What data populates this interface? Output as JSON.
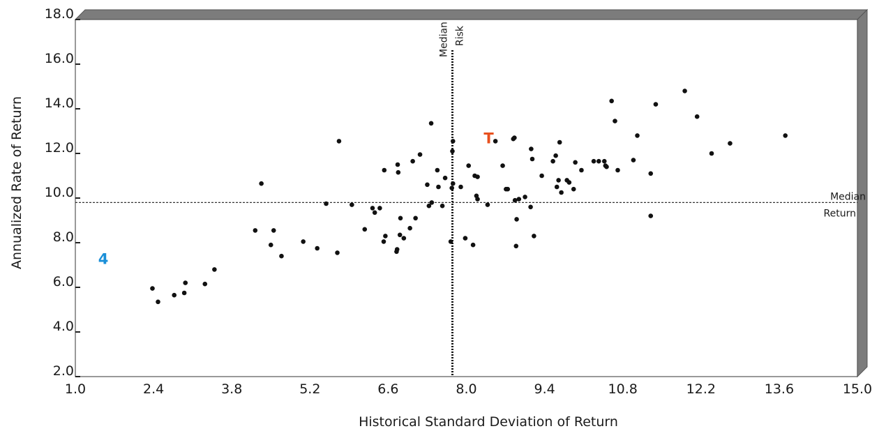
{
  "chart_data": {
    "type": "scatter",
    "title": "",
    "xlabel": "Historical Standard Deviation of Return",
    "ylabel": "Annualized Rate of Return",
    "xlim": [
      1.0,
      15.0
    ],
    "ylim": [
      2.0,
      18.0
    ],
    "x_ticks": [
      "1.0",
      "2.4",
      "3.8",
      "5.2",
      "6.6",
      "8.0",
      "9.4",
      "10.8",
      "12.2",
      "13.6",
      "15.0"
    ],
    "y_ticks": [
      "2.0",
      "4.0",
      "6.0",
      "8.0",
      "10.0",
      "12.0",
      "14.0",
      "16.0",
      "18.0"
    ],
    "grid": false,
    "reference_lines": {
      "median_risk": {
        "value": 7.75,
        "label_line1": "Median",
        "label_line2": "Risk"
      },
      "median_return": {
        "value": 9.8,
        "label_line1": "Median",
        "label_line2": "Return"
      }
    },
    "highlights": [
      {
        "label": "T",
        "x": 8.4,
        "y": 12.7,
        "color": "#e8501e"
      },
      {
        "label": "4",
        "x": 1.5,
        "y": 7.3,
        "color": "#1a8fd8"
      }
    ],
    "points": [
      [
        2.38,
        5.95
      ],
      [
        2.48,
        5.35
      ],
      [
        2.77,
        5.65
      ],
      [
        2.95,
        5.75
      ],
      [
        2.97,
        6.2
      ],
      [
        3.32,
        6.15
      ],
      [
        3.49,
        6.8
      ],
      [
        4.22,
        8.55
      ],
      [
        4.33,
        10.65
      ],
      [
        4.5,
        7.9
      ],
      [
        4.55,
        8.55
      ],
      [
        4.69,
        7.4
      ],
      [
        5.08,
        8.05
      ],
      [
        5.33,
        7.75
      ],
      [
        5.49,
        9.75
      ],
      [
        5.69,
        7.55
      ],
      [
        5.72,
        12.55
      ],
      [
        5.95,
        9.7
      ],
      [
        6.18,
        8.6
      ],
      [
        6.32,
        9.55
      ],
      [
        6.36,
        9.35
      ],
      [
        6.45,
        9.55
      ],
      [
        6.52,
        8.05
      ],
      [
        6.53,
        11.25
      ],
      [
        6.55,
        8.3
      ],
      [
        6.75,
        7.6
      ],
      [
        6.76,
        7.7
      ],
      [
        6.77,
        11.5
      ],
      [
        6.78,
        11.15
      ],
      [
        6.81,
        8.35
      ],
      [
        6.82,
        9.1
      ],
      [
        6.88,
        8.2
      ],
      [
        6.99,
        8.65
      ],
      [
        7.04,
        11.65
      ],
      [
        7.09,
        9.1
      ],
      [
        7.17,
        11.95
      ],
      [
        7.3,
        10.6
      ],
      [
        7.33,
        9.65
      ],
      [
        7.38,
        9.8
      ],
      [
        7.37,
        13.35
      ],
      [
        7.48,
        11.25
      ],
      [
        7.5,
        10.5
      ],
      [
        7.57,
        9.65
      ],
      [
        7.62,
        10.9
      ],
      [
        7.72,
        8.05
      ],
      [
        7.74,
        10.45
      ],
      [
        7.75,
        12.1
      ],
      [
        7.76,
        12.55
      ],
      [
        7.76,
        10.65
      ],
      [
        7.9,
        10.5
      ],
      [
        7.98,
        8.2
      ],
      [
        8.04,
        11.45
      ],
      [
        8.12,
        7.9
      ],
      [
        8.15,
        11.0
      ],
      [
        8.18,
        10.1
      ],
      [
        8.2,
        10.95
      ],
      [
        8.2,
        9.95
      ],
      [
        8.38,
        9.7
      ],
      [
        8.52,
        12.55
      ],
      [
        8.65,
        11.45
      ],
      [
        8.71,
        10.4
      ],
      [
        8.74,
        10.4
      ],
      [
        8.84,
        12.65
      ],
      [
        8.86,
        12.7
      ],
      [
        8.87,
        9.9
      ],
      [
        8.89,
        7.85
      ],
      [
        8.9,
        9.05
      ],
      [
        8.94,
        9.95
      ],
      [
        9.05,
        10.05
      ],
      [
        9.15,
        9.6
      ],
      [
        9.16,
        12.2
      ],
      [
        9.18,
        11.75
      ],
      [
        9.21,
        8.3
      ],
      [
        9.35,
        11.0
      ],
      [
        9.55,
        11.65
      ],
      [
        9.6,
        11.9
      ],
      [
        9.62,
        10.5
      ],
      [
        9.65,
        10.8
      ],
      [
        9.67,
        12.5
      ],
      [
        9.7,
        10.25
      ],
      [
        9.8,
        10.8
      ],
      [
        9.84,
        10.7
      ],
      [
        9.92,
        10.4
      ],
      [
        9.95,
        11.6
      ],
      [
        10.06,
        11.25
      ],
      [
        10.28,
        11.65
      ],
      [
        10.37,
        11.65
      ],
      [
        10.47,
        11.65
      ],
      [
        10.49,
        11.45
      ],
      [
        10.51,
        11.4
      ],
      [
        10.6,
        14.35
      ],
      [
        10.66,
        13.45
      ],
      [
        10.71,
        11.25
      ],
      [
        10.99,
        11.7
      ],
      [
        11.06,
        12.8
      ],
      [
        11.3,
        11.1
      ],
      [
        11.3,
        9.2
      ],
      [
        11.39,
        14.2
      ],
      [
        11.91,
        14.8
      ],
      [
        12.13,
        13.65
      ],
      [
        12.39,
        12.0
      ],
      [
        12.72,
        12.45
      ],
      [
        13.71,
        12.8
      ]
    ]
  }
}
